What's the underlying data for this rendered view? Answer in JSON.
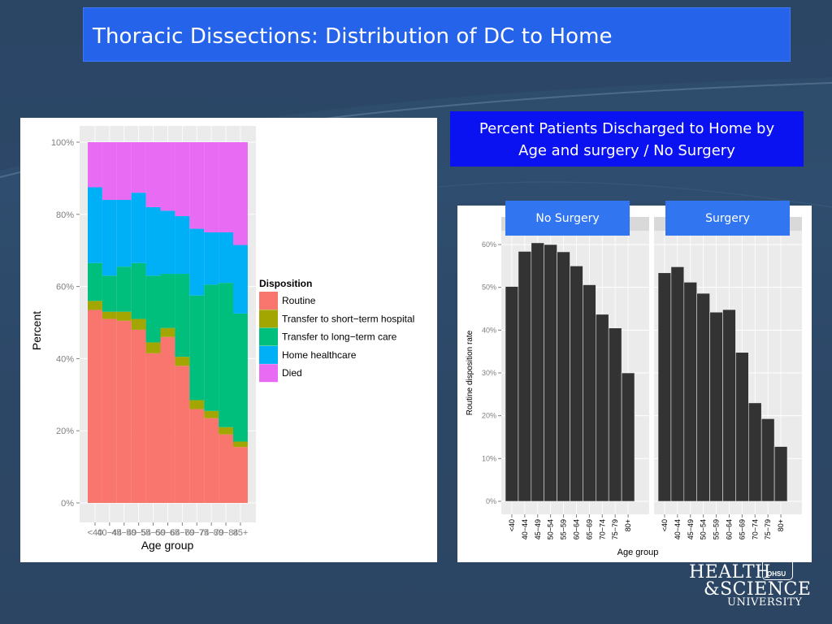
{
  "slide": {
    "title": "Thoracic Dissections: Distribution of DC to Home",
    "caption_line1": "Percent Patients Discharged to Home by",
    "caption_line2": "Age and surgery / No Surgery",
    "logo_line1": "HEALTH",
    "logo_line2": "&SCIENCE",
    "logo_line3": "UNIVERSITY",
    "logo_badge": "OHSU",
    "colors": {
      "background": "#2d4a68",
      "title_bar": "#2563ea",
      "caption_box": "#0a12f2",
      "facet_tab": "#3176f0"
    }
  },
  "chart_data": [
    {
      "type": "bar",
      "stacked": true,
      "xlabel": "Age group",
      "ylabel": "Percent",
      "ylim": [
        0,
        100
      ],
      "y_ticks": [
        "0%",
        "20%",
        "40%",
        "60%",
        "80%",
        "100%"
      ],
      "legend_title": "Disposition",
      "legend_position": "right",
      "grid": true,
      "categories": [
        "<40",
        "40-44",
        "45-49",
        "50-54",
        "55-59",
        "60-64",
        "65-69",
        "70-74",
        "75-79",
        "80-84",
        "85+"
      ],
      "category_labels": [
        "<40",
        "40−44",
        "45−49",
        "50−54",
        "55−59",
        "60−64",
        "65−69",
        "70−74",
        "75−79",
        "80−84",
        "85+"
      ],
      "series": [
        {
          "name": "Routine",
          "color": "#f8766d",
          "values": [
            53.5,
            51,
            50.5,
            48,
            41.5,
            46,
            38,
            26,
            23.5,
            19,
            15.5
          ]
        },
        {
          "name": "Transfer to short−term hospital",
          "color": "#a3a500",
          "values": [
            2.5,
            2,
            2.5,
            3,
            3,
            2.5,
            2.5,
            2.5,
            2,
            2,
            1.5
          ]
        },
        {
          "name": "Transfer to long−term care",
          "color": "#00bf7d",
          "values": [
            10.5,
            10,
            12.5,
            15.5,
            18.5,
            15,
            23,
            29,
            35,
            40,
            35.5
          ]
        },
        {
          "name": "Home healthcare",
          "color": "#00b0f6",
          "values": [
            21,
            21,
            18.5,
            19.5,
            19,
            17.5,
            16,
            18.5,
            14.5,
            14,
            19
          ]
        },
        {
          "name": "Died",
          "color": "#e76bf3",
          "values": [
            12.5,
            16,
            16,
            14,
            18,
            19,
            20.5,
            24,
            25,
            25,
            28.5
          ]
        }
      ]
    },
    {
      "type": "bar",
      "facets": [
        "No Surgery",
        "Surgery"
      ],
      "xlabel": "Age group",
      "ylabel": "Routine disposition rate",
      "ylim": [
        0,
        60
      ],
      "y_ticks": [
        "0%",
        "10%",
        "20%",
        "30%",
        "40%",
        "50%",
        "60%"
      ],
      "grid": true,
      "categories": [
        "<40",
        "40-44",
        "45-49",
        "50-54",
        "55-59",
        "60-64",
        "65-69",
        "70-74",
        "75-79",
        "80+"
      ],
      "category_labels": [
        "<40",
        "40−44",
        "45−49",
        "50−54",
        "55−59",
        "60−64",
        "65−69",
        "70−74",
        "75−79",
        "80+"
      ],
      "bar_color": "#333333",
      "series": [
        {
          "name": "No Surgery",
          "values": [
            50.2,
            58.4,
            60.4,
            60.0,
            58.3,
            55.0,
            50.6,
            43.7,
            40.5,
            30.0
          ]
        },
        {
          "name": "Surgery",
          "values": [
            53.4,
            54.8,
            51.2,
            48.6,
            44.2,
            44.8,
            34.8,
            23.0,
            19.3,
            12.8
          ]
        }
      ]
    }
  ]
}
